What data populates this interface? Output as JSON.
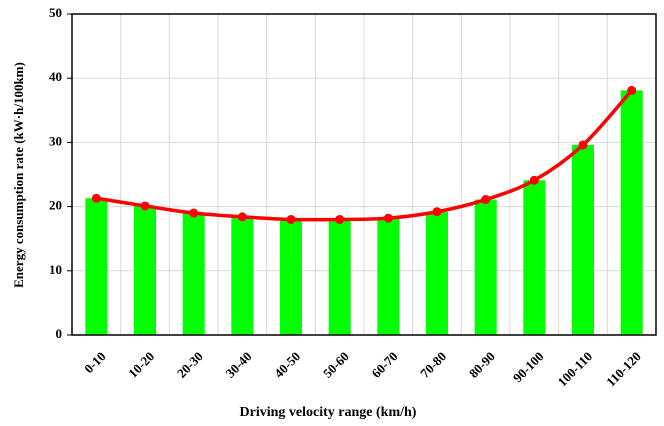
{
  "chart_data": {
    "type": "bar",
    "x_label": "Driving  velocity range (km/h)",
    "y_label": "Energy consumption rate  (kW·h/100km)",
    "categories": [
      "0-10",
      "10-20",
      "20-30",
      "30-40",
      "40-50",
      "50-60",
      "60-70",
      "70-80",
      "80-90",
      "90-100",
      "100-110",
      "110-120"
    ],
    "series": [
      {
        "type": "bar",
        "color": "#00ff00",
        "values": [
          21.3,
          20.1,
          19.0,
          18.4,
          18.0,
          18.0,
          18.2,
          19.2,
          21.1,
          24.1,
          29.6,
          38.1
        ]
      },
      {
        "type": "line",
        "color": "#ff0000",
        "values": [
          21.3,
          20.1,
          19.0,
          18.4,
          18.0,
          18.0,
          18.2,
          19.2,
          21.1,
          24.1,
          29.6,
          38.1
        ]
      }
    ],
    "ylim": [
      0,
      50
    ],
    "yticks": [
      0,
      10,
      20,
      30,
      40,
      50
    ],
    "grid": true
  }
}
